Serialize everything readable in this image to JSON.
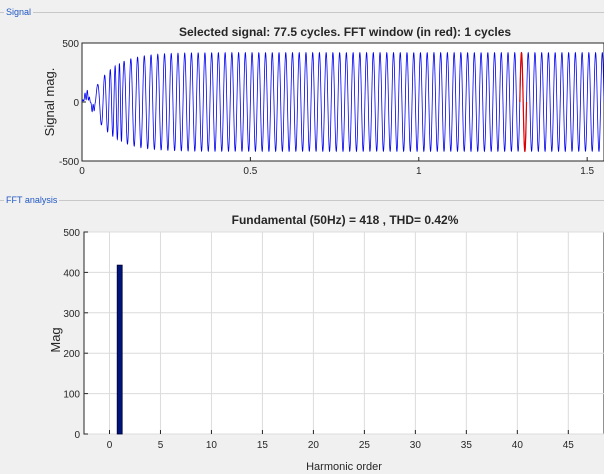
{
  "panels": {
    "signal_title": "Signal",
    "fft_title": "FFT analysis"
  },
  "colors": {
    "signal_line": "#0000ee",
    "fft_window": "#dd0000",
    "bar_fill": "#00157a",
    "panel_title": "#1f57c3"
  },
  "chart_data": [
    {
      "type": "line",
      "title": "Selected signal: 77.5 cycles. FFT window (in red): 1 cycles",
      "ylabel": "Signal mag.",
      "xlabel": "",
      "xlim": [
        0,
        1.55
      ],
      "ylim": [
        -500,
        500
      ],
      "x_ticks": [
        "0",
        "0.5",
        "1",
        "1.5"
      ],
      "x_tick_values": [
        0,
        0.5,
        1,
        1.5
      ],
      "y_ticks": [
        "500",
        "0",
        "-500"
      ],
      "y_tick_values": [
        500,
        0,
        -500
      ],
      "frequency_hz": 50,
      "steady_amplitude": 418,
      "fft_window": [
        1.3,
        1.32
      ],
      "series": [
        {
          "values_description_free": true
        }
      ]
    },
    {
      "type": "bar",
      "title": "Fundamental (50Hz) = 418 , THD= 0.42%",
      "xlabel": "Harmonic order",
      "ylabel": "Mag",
      "xlim": [
        -2.5,
        48.5
      ],
      "ylim": [
        0,
        500
      ],
      "x_ticks": [
        "0",
        "5",
        "10",
        "15",
        "20",
        "25",
        "30",
        "35",
        "40",
        "45"
      ],
      "x_tick_values": [
        0,
        5,
        10,
        15,
        20,
        25,
        30,
        35,
        40,
        45
      ],
      "y_ticks": [
        "500",
        "400",
        "300",
        "200",
        "100",
        "0"
      ],
      "y_tick_values": [
        500,
        400,
        300,
        200,
        100,
        0
      ],
      "bars": [
        {
          "x": 1,
          "value": 418
        }
      ]
    }
  ]
}
